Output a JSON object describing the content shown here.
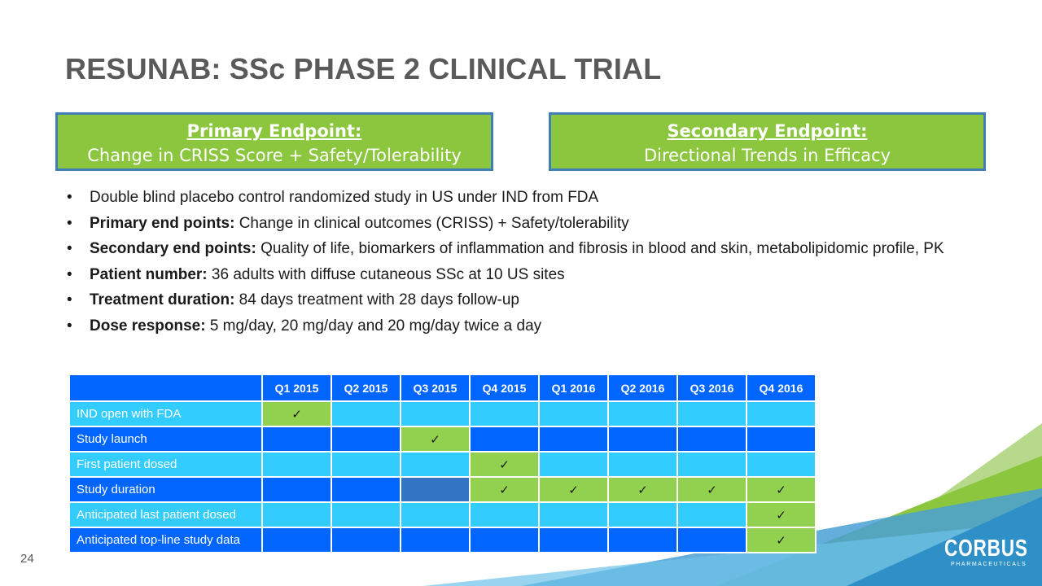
{
  "title": "RESUNAB: SSc PHASE 2 CLINICAL TRIAL",
  "primary_endpoint": {
    "heading": "Primary Endpoint:",
    "text": "Change in CRISS Score + Safety/Tolerability"
  },
  "secondary_endpoint": {
    "heading": "Secondary Endpoint:",
    "text": "Directional Trends in Efficacy"
  },
  "bullets": [
    {
      "bold": "",
      "text": "Double blind placebo control randomized study in US under IND from FDA"
    },
    {
      "bold": "Primary end points:",
      "text": " Change in clinical outcomes (CRISS) + Safety/tolerability"
    },
    {
      "bold": "Secondary end points:",
      "text": " Quality of life, biomarkers of inflammation and fibrosis in blood and skin, metabolipidomic profile, PK"
    },
    {
      "bold": "Patient number:",
      "text": " 36 adults with diffuse cutaneous SSc at 10 US sites"
    },
    {
      "bold": "Treatment duration:",
      "text": " 84 days treatment with 28 days follow-up"
    },
    {
      "bold": "Dose response:",
      "text": " 5 mg/day, 20 mg/day and 20 mg/day twice a day"
    }
  ],
  "bullet_symbol": "•",
  "check_symbol": "✓",
  "table": {
    "corner": "",
    "columns": [
      "Q1 2015",
      "Q2 2015",
      "Q3 2015",
      "Q4 2015",
      "Q1 2016",
      "Q2 2016",
      "Q3 2016",
      "Q4 2016"
    ],
    "rows": [
      {
        "label": "IND open with FDA",
        "marks": [
          1,
          0,
          0,
          0,
          0,
          0,
          0,
          0
        ],
        "partial": [
          0,
          0,
          0,
          0,
          0,
          0,
          0,
          0
        ]
      },
      {
        "label": "Study launch",
        "marks": [
          0,
          0,
          1,
          0,
          0,
          0,
          0,
          0
        ],
        "partial": [
          0,
          0,
          0,
          0,
          0,
          0,
          0,
          0
        ]
      },
      {
        "label": "First patient dosed",
        "marks": [
          0,
          0,
          0,
          1,
          0,
          0,
          0,
          0
        ],
        "partial": [
          0,
          0,
          0,
          0,
          0,
          0,
          0,
          0
        ]
      },
      {
        "label": "Study duration",
        "marks": [
          0,
          0,
          0,
          1,
          1,
          1,
          1,
          1
        ],
        "partial": [
          0,
          0,
          1,
          0,
          0,
          0,
          0,
          0
        ]
      },
      {
        "label": "Anticipated last patient dosed",
        "marks": [
          0,
          0,
          0,
          0,
          0,
          0,
          0,
          1
        ],
        "partial": [
          0,
          0,
          0,
          0,
          0,
          0,
          0,
          0
        ]
      },
      {
        "label": "Anticipated top-line study data",
        "marks": [
          0,
          0,
          0,
          0,
          0,
          0,
          0,
          1
        ],
        "partial": [
          0,
          0,
          0,
          0,
          0,
          0,
          0,
          0
        ]
      }
    ]
  },
  "page_number": "24",
  "logo": {
    "name": "CORBUS",
    "tagline": "PHARMACEUTICALS"
  },
  "colors": {
    "endpoint_fill": "#8cc63f",
    "endpoint_border": "#3f7fb5",
    "table_dark": "#0066ff",
    "table_light": "#33ccff",
    "table_check": "#92d050",
    "table_partial": "#3375c4",
    "title": "#5a5a5a"
  }
}
